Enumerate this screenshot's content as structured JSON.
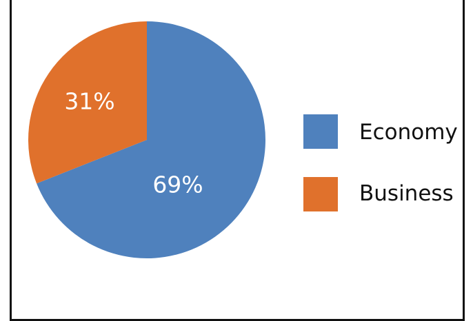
{
  "chart_data": {
    "type": "pie",
    "categories": [
      "Economy",
      "Business"
    ],
    "values": [
      69,
      31
    ],
    "labels": [
      "69%",
      "31%"
    ],
    "colors": [
      "#4f81bd",
      "#e0712c"
    ],
    "title": "",
    "legend_position": "right"
  }
}
